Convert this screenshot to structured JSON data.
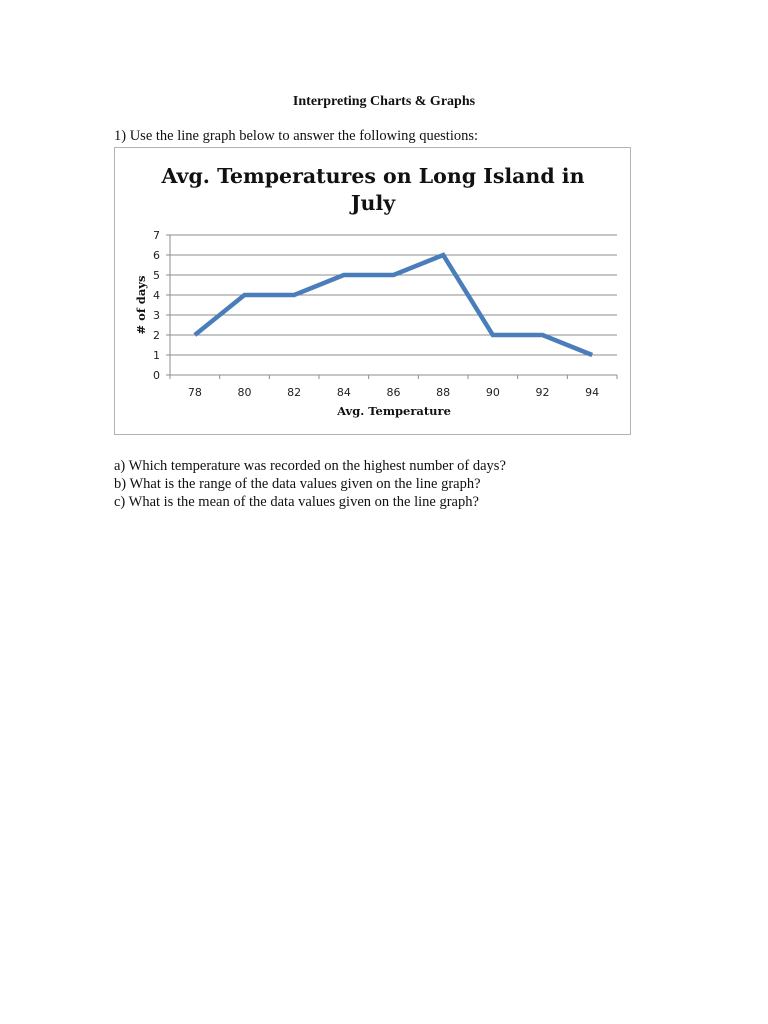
{
  "document": {
    "title": "Interpreting Charts & Graphs",
    "question_intro": "1)  Use the line graph below to answer the following questions:",
    "questions": [
      "a) Which temperature was recorded on the highest number of days?",
      "b) What is the range of the data values given on the line graph?",
      "c) What is the mean of the data values given on the line graph?"
    ]
  },
  "colors": {
    "line": "#4a7ebb",
    "gridline": "#8c8c8c",
    "frame_border": "#b3b3b3"
  },
  "chart_data": {
    "type": "line",
    "title": "Avg. Temperatures on Long Island in July",
    "title_lines": [
      "Avg. Temperatures on Long Island in",
      "July"
    ],
    "xlabel": "Avg. Temperature",
    "ylabel": "# of days",
    "categories": [
      "78",
      "80",
      "82",
      "84",
      "86",
      "88",
      "90",
      "92",
      "94"
    ],
    "series": [
      {
        "name": "# of days",
        "values": [
          2,
          4,
          4,
          5,
          5,
          6,
          2,
          2,
          1
        ]
      }
    ],
    "ylim": [
      0,
      7
    ],
    "yticks": [
      "0",
      "1",
      "2",
      "3",
      "4",
      "5",
      "6",
      "7"
    ],
    "grid": true,
    "legend": "none"
  }
}
